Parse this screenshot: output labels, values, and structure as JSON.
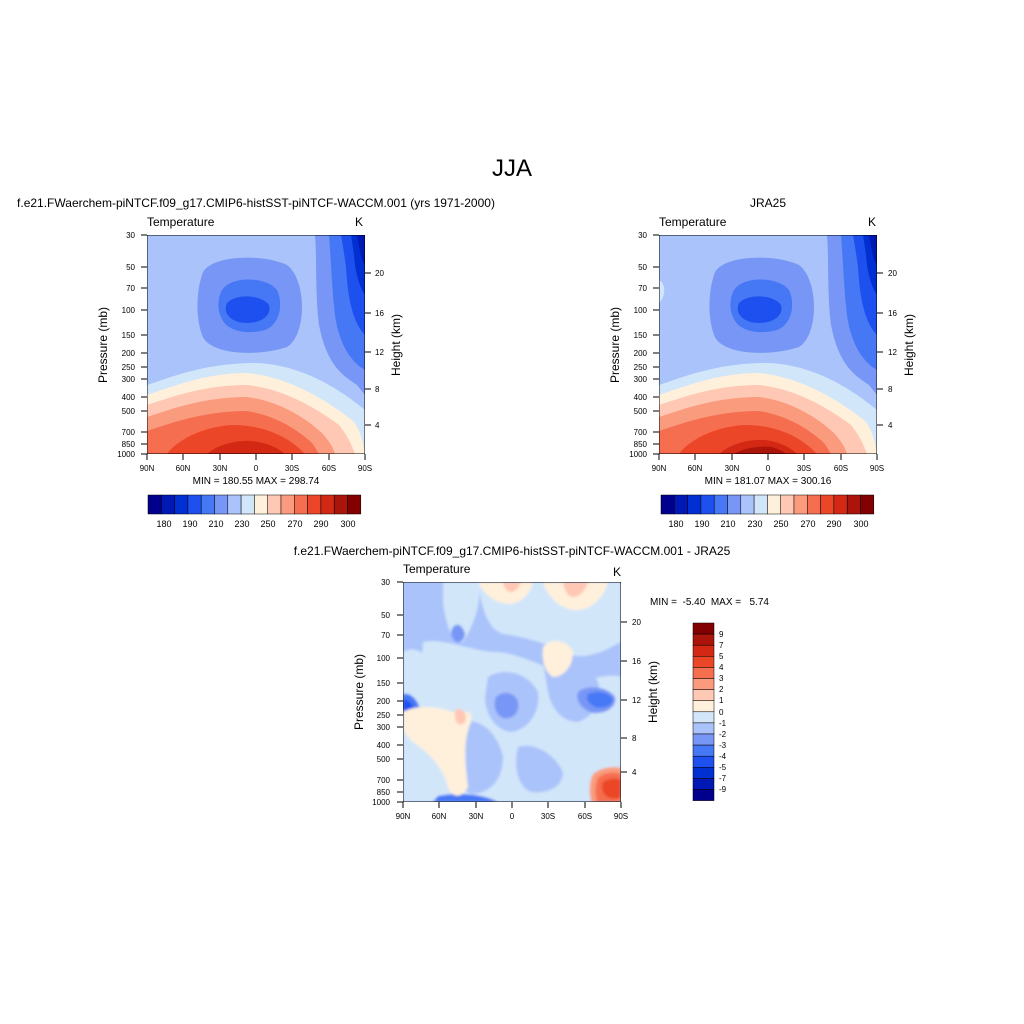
{
  "figure": {
    "title": "JJA"
  },
  "chart_data": [
    {
      "type": "contour",
      "title": "f.e21.FWaerchem-piNTCF.f09_g17.CMIP6-histSST-piNTCF-WACCM.001 (yrs 1971-2000)",
      "variable_label": "Temperature",
      "units": "K",
      "ylabel": "Pressure (mb)",
      "ylabel_right": "Height (km)",
      "x_ticks": [
        "90N",
        "60N",
        "30N",
        "0",
        "30S",
        "60S",
        "90S"
      ],
      "y_ticks": [
        "30",
        "50",
        "70",
        "100",
        "150",
        "200",
        "250",
        "300",
        "400",
        "500",
        "700",
        "850",
        "1000"
      ],
      "y_ticks_right": [
        "20",
        "16",
        "12",
        "8",
        "4"
      ],
      "stats": "MIN = 180.55  MAX = 298.74",
      "min": 180.55,
      "max": 298.74,
      "colorbar_labels": [
        "180",
        "190",
        "210",
        "230",
        "250",
        "270",
        "290",
        "300"
      ]
    },
    {
      "type": "contour",
      "title": "JRA25",
      "variable_label": "Temperature",
      "units": "K",
      "ylabel": "Pressure (mb)",
      "ylabel_right": "Height (km)",
      "x_ticks": [
        "90N",
        "60N",
        "30N",
        "0",
        "30S",
        "60S",
        "90S"
      ],
      "y_ticks": [
        "30",
        "50",
        "70",
        "100",
        "150",
        "200",
        "250",
        "300",
        "400",
        "500",
        "700",
        "850",
        "1000"
      ],
      "y_ticks_right": [
        "20",
        "16",
        "12",
        "8",
        "4"
      ],
      "stats": "MIN = 181.07  MAX = 300.16",
      "min": 181.07,
      "max": 300.16,
      "colorbar_labels": [
        "180",
        "190",
        "210",
        "230",
        "250",
        "270",
        "290",
        "300"
      ]
    },
    {
      "type": "contour",
      "title": "f.e21.FWaerchem-piNTCF.f09_g17.CMIP6-histSST-piNTCF-WACCM.001 - JRA25",
      "variable_label": "Temperature",
      "units": "K",
      "ylabel": "Pressure (mb)",
      "ylabel_right": "Height (km)",
      "x_ticks": [
        "90N",
        "60N",
        "30N",
        "0",
        "30S",
        "60S",
        "90S"
      ],
      "y_ticks": [
        "30",
        "50",
        "70",
        "100",
        "150",
        "200",
        "250",
        "300",
        "400",
        "500",
        "700",
        "850",
        "1000"
      ],
      "y_ticks_right": [
        "20",
        "16",
        "12",
        "8",
        "4"
      ],
      "stats": "MIN =  -5.40  MAX =   5.74",
      "min": -5.4,
      "max": 5.74,
      "colorbar_labels": [
        "9",
        "7",
        "5",
        "4",
        "3",
        "2",
        "1",
        "0",
        "-1",
        "-2",
        "-3",
        "-4",
        "-5",
        "-7",
        "-9"
      ]
    }
  ],
  "colors": {
    "temp_levels": [
      "#00008c",
      "#0018b4",
      "#0030d2",
      "#1e50f0",
      "#4678f5",
      "#7896f5",
      "#aac3fa",
      "#d2e6fa",
      "#fff0dc",
      "#ffc8b4",
      "#fa9b7d",
      "#f56e50",
      "#eb4628",
      "#d22814",
      "#aa140a",
      "#820000"
    ],
    "diff_levels": [
      "#820000",
      "#aa140a",
      "#d22814",
      "#eb4628",
      "#f56e50",
      "#fa9b7d",
      "#ffc8b4",
      "#fff0dc",
      "#d2e6fa",
      "#aac3fa",
      "#7896f5",
      "#4678f5",
      "#1e50f0",
      "#0030d2",
      "#0018b4",
      "#00008c"
    ]
  }
}
